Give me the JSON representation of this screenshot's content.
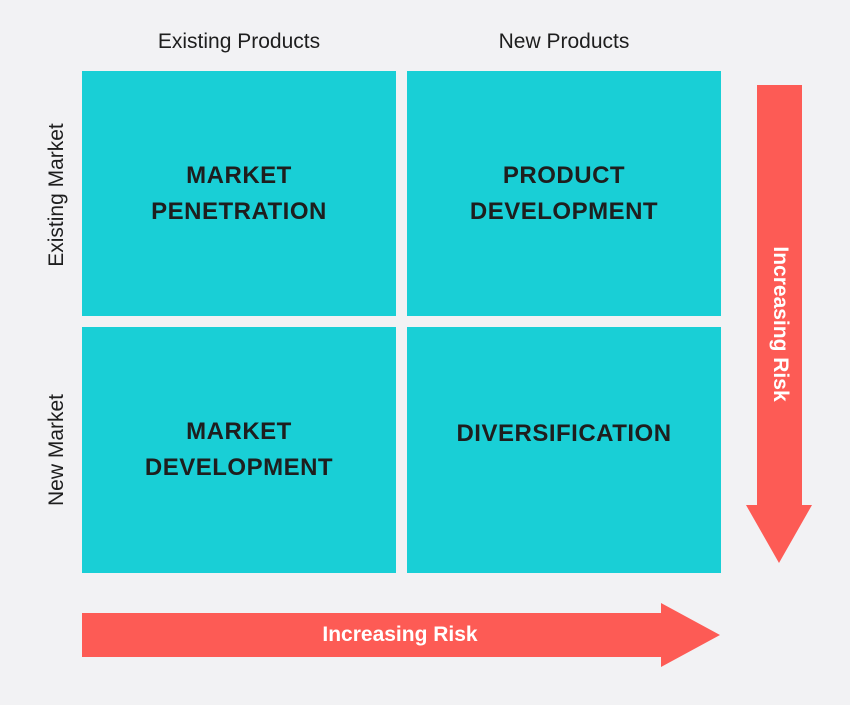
{
  "columns": {
    "existing_products": "Existing Products",
    "new_products": "New Products"
  },
  "rows": {
    "existing_market": "Existing Market",
    "new_market": "New Market"
  },
  "quadrants": {
    "market_penetration": "MARKET\nPENETRATION",
    "product_development": "PRODUCT\nDEVELOPMENT",
    "market_development": "MARKET\nDEVELOPMENT",
    "diversification": "DIVERSIFICATION"
  },
  "arrows": {
    "horizontal_label": "Increasing Risk",
    "vertical_label": "Increasing Risk"
  },
  "colors": {
    "cell": "#19cfd6",
    "arrow": "#fd5b55",
    "background": "#f2f2f4",
    "text": "#1e1e1e"
  }
}
